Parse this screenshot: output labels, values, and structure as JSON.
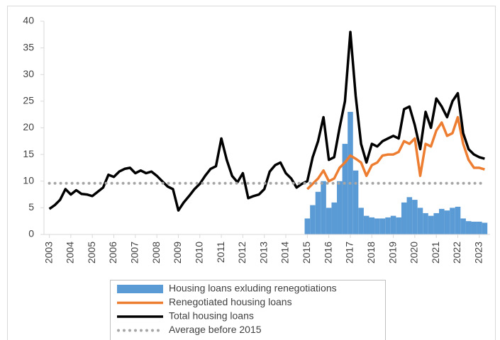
{
  "chart_data": {
    "type": "combo",
    "x": [
      2003,
      2003.25,
      2003.5,
      2003.75,
      2004,
      2004.25,
      2004.5,
      2004.75,
      2005,
      2005.25,
      2005.5,
      2005.75,
      2006,
      2006.25,
      2006.5,
      2006.75,
      2007,
      2007.25,
      2007.5,
      2007.75,
      2008,
      2008.25,
      2008.5,
      2008.75,
      2009,
      2009.25,
      2009.5,
      2009.75,
      2010,
      2010.25,
      2010.5,
      2010.75,
      2011,
      2011.25,
      2011.5,
      2011.75,
      2012,
      2012.25,
      2012.5,
      2012.75,
      2013,
      2013.25,
      2013.5,
      2013.75,
      2014,
      2014.25,
      2014.5,
      2014.75,
      2015,
      2015.25,
      2015.5,
      2015.75,
      2016,
      2016.25,
      2016.5,
      2016.75,
      2017,
      2017.25,
      2017.5,
      2017.75,
      2018,
      2018.25,
      2018.5,
      2018.75,
      2019,
      2019.25,
      2019.5,
      2019.75,
      2020,
      2020.25,
      2020.5,
      2020.75,
      2021,
      2021.25,
      2021.5,
      2021.75,
      2022,
      2022.25,
      2022.5,
      2022.75,
      2023,
      2023.25
    ],
    "series": [
      {
        "name": "Housing loans exluding renegotiations",
        "type": "bar",
        "color": "#5b9bd5",
        "values": [
          null,
          null,
          null,
          null,
          null,
          null,
          null,
          null,
          null,
          null,
          null,
          null,
          null,
          null,
          null,
          null,
          null,
          null,
          null,
          null,
          null,
          null,
          null,
          null,
          null,
          null,
          null,
          null,
          null,
          null,
          null,
          null,
          null,
          null,
          null,
          null,
          null,
          null,
          null,
          null,
          null,
          null,
          null,
          null,
          null,
          null,
          null,
          null,
          3,
          5.5,
          8,
          10,
          5,
          6,
          10,
          17,
          23,
          12,
          5,
          3.5,
          3.2,
          3,
          3,
          3.2,
          3.5,
          3.2,
          6,
          7,
          6.5,
          5,
          4,
          3.5,
          4,
          4.8,
          4.5,
          5,
          5.2,
          3,
          2.5,
          2.4,
          2.4,
          2.2
        ]
      },
      {
        "name": "Renegotiated housing loans",
        "type": "line",
        "color": "#ed7d31",
        "values": [
          null,
          null,
          null,
          null,
          null,
          null,
          null,
          null,
          null,
          null,
          null,
          null,
          null,
          null,
          null,
          null,
          null,
          null,
          null,
          null,
          null,
          null,
          null,
          null,
          null,
          null,
          null,
          null,
          null,
          null,
          null,
          null,
          null,
          null,
          null,
          null,
          null,
          null,
          null,
          null,
          null,
          null,
          null,
          null,
          null,
          null,
          null,
          null,
          8.5,
          9.5,
          10.5,
          12,
          10,
          10.5,
          12.5,
          13.5,
          14.8,
          14.2,
          13.5,
          11,
          13,
          13.5,
          14.8,
          15,
          15,
          15.5,
          17.5,
          17,
          18,
          11,
          17,
          16.5,
          19.5,
          21,
          18.5,
          19,
          22,
          17,
          14,
          12.5,
          12.5,
          12.2
        ]
      },
      {
        "name": "Total housing loans",
        "type": "line",
        "color": "#000000",
        "values": [
          4.8,
          5.5,
          6.5,
          8.5,
          7.5,
          8.3,
          7.6,
          7.5,
          7.2,
          8,
          8.8,
          11.2,
          10.8,
          11.8,
          12.3,
          12.5,
          11.5,
          12,
          11.5,
          11.8,
          11,
          10,
          9,
          8.5,
          4.5,
          6,
          7.2,
          8.5,
          9.5,
          11,
          12.3,
          12.8,
          18,
          14,
          11,
          9.8,
          11.5,
          6.8,
          7.2,
          7.5,
          8.5,
          11.8,
          13,
          13.5,
          11.5,
          10.5,
          8.8,
          9.5,
          10,
          14.5,
          17.5,
          22,
          14,
          14.5,
          20,
          25,
          38,
          26,
          17,
          13.5,
          17,
          16.5,
          17.5,
          18,
          18.5,
          18,
          23.5,
          24,
          20.5,
          16,
          23,
          20,
          25.5,
          24,
          22,
          25,
          26.5,
          19,
          16,
          15,
          14.5,
          14.2
        ]
      },
      {
        "name": "Average before 2015",
        "type": "hline",
        "color": "#a6a6a6",
        "value": 9.6
      }
    ],
    "xlim": [
      2002.75,
      2023.5
    ],
    "xticks": [
      2003,
      2004,
      2005,
      2006,
      2007,
      2008,
      2009,
      2010,
      2011,
      2012,
      2013,
      2014,
      2015,
      2016,
      2017,
      2018,
      2019,
      2020,
      2021,
      2022,
      2023
    ],
    "ylim": [
      0,
      40
    ],
    "yticks": [
      0,
      5,
      10,
      15,
      20,
      25,
      30,
      35,
      40
    ],
    "grid": false,
    "legend": "bottom"
  }
}
